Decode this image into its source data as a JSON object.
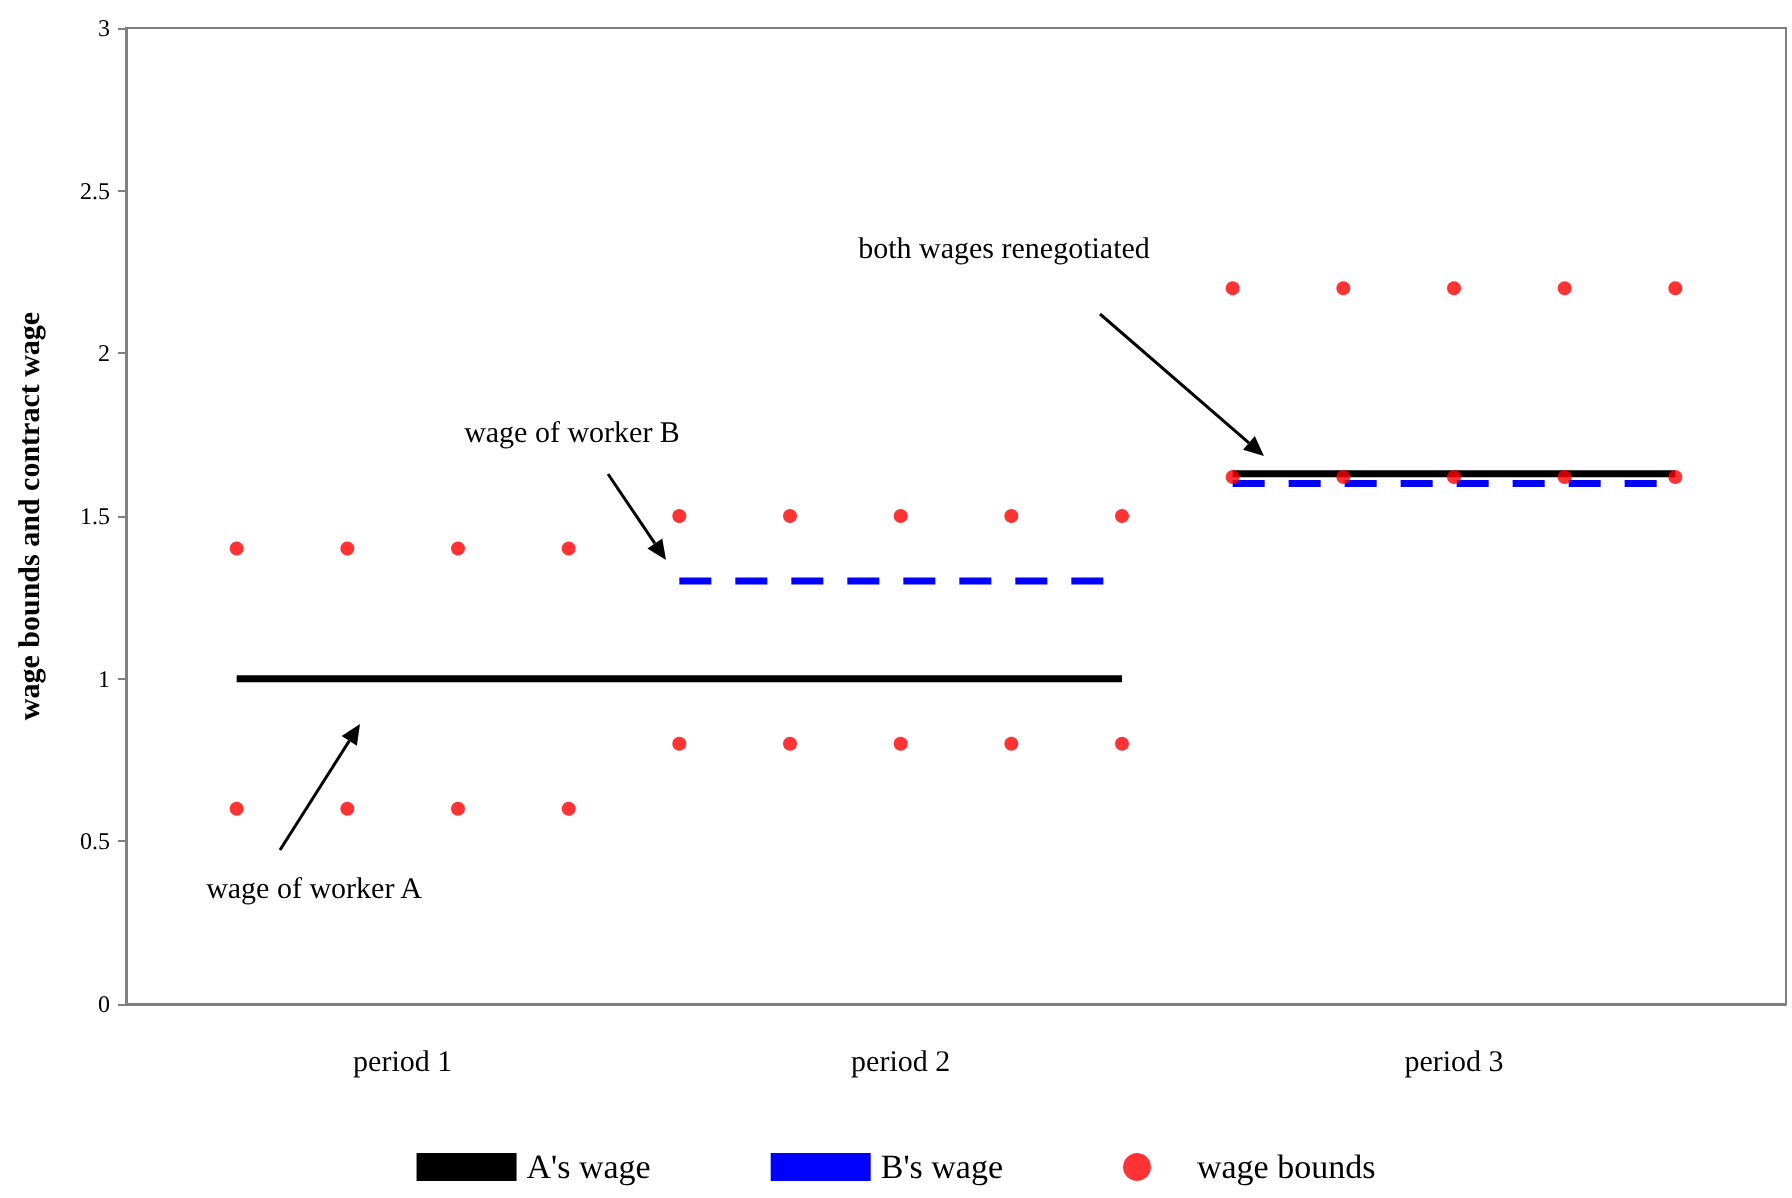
{
  "chart_data": {
    "type": "line",
    "ylabel": "wage bounds and contract wage",
    "categories": [
      null,
      null,
      null,
      null,
      null,
      "period 1",
      null,
      null,
      null,
      null,
      null,
      null,
      null,
      null,
      "period 2",
      null,
      null,
      null,
      null,
      null,
      null,
      null,
      null,
      null,
      "period 3",
      null,
      null,
      null,
      null,
      null,
      null
    ],
    "ylim": [
      0,
      3
    ],
    "yticks": [
      0,
      0.5,
      1,
      1.5,
      2,
      2.5,
      3
    ],
    "legend": "bottom",
    "series": [
      {
        "name": "A's wage",
        "color": "#000000",
        "line_style": "solid",
        "values": [
          null,
          null,
          1,
          1,
          1,
          1,
          1,
          1,
          1,
          1,
          1,
          1,
          1,
          1,
          1,
          1,
          1,
          1,
          1,
          null,
          1.63,
          1.63,
          1.63,
          1.63,
          1.63,
          1.63,
          1.63,
          1.63,
          1.63,
          null,
          null
        ]
      },
      {
        "name": "B's wage",
        "color": "#0000ff",
        "line_style": "dashed",
        "values": [
          null,
          null,
          null,
          null,
          null,
          null,
          null,
          null,
          null,
          null,
          1.3,
          1.3,
          1.3,
          1.3,
          1.3,
          1.3,
          1.3,
          1.3,
          1.3,
          null,
          1.6,
          1.6,
          1.6,
          1.6,
          1.6,
          1.6,
          1.6,
          1.6,
          1.6,
          null,
          null
        ]
      },
      {
        "name": "wage bounds",
        "type": "scatter",
        "color": "#ff0000",
        "marker": "circle",
        "values": [
          null,
          null,
          1.4,
          null,
          1.4,
          null,
          1.4,
          null,
          1.4,
          null,
          1.5,
          null,
          1.5,
          null,
          1.5,
          null,
          1.5,
          null,
          1.5,
          null,
          2.2,
          null,
          2.2,
          null,
          2.2,
          null,
          2.2,
          null,
          2.2,
          null,
          null
        ]
      },
      {
        "type": "scatter",
        "color": "#ff0000",
        "marker": "circle",
        "values": [
          null,
          null,
          0.6,
          null,
          0.6,
          null,
          0.6,
          null,
          0.6,
          null,
          0.8,
          null,
          0.8,
          null,
          0.8,
          null,
          0.8,
          null,
          0.8,
          null,
          1.62,
          null,
          1.62,
          null,
          1.62,
          null,
          1.62,
          null,
          1.62,
          null,
          null
        ]
      }
    ],
    "annotations": [
      "wage of worker A",
      "wage of worker B",
      "both wages renegotiated"
    ]
  }
}
